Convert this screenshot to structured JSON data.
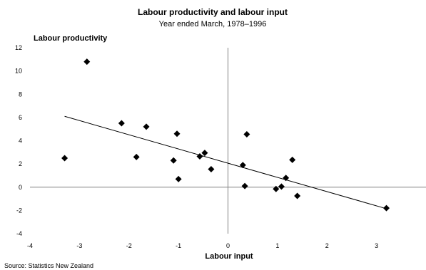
{
  "chart_data": {
    "type": "scatter",
    "title": "Labour productivity and labour input",
    "subtitle": "Year ended March, 1978–1996",
    "xlabel": "Labour input",
    "ylabel": "Labour productivity",
    "xlim": [
      -4,
      4
    ],
    "ylim": [
      -4,
      12
    ],
    "x_ticks": [
      -4,
      -3,
      -2,
      -1,
      0,
      1,
      2,
      3
    ],
    "y_ticks": [
      -4,
      -2,
      0,
      2,
      4,
      6,
      8,
      10,
      12
    ],
    "grid": false,
    "legend": "none",
    "points": [
      {
        "x": -3.3,
        "y": 2.5
      },
      {
        "x": -2.85,
        "y": 10.8
      },
      {
        "x": -2.15,
        "y": 5.5
      },
      {
        "x": -1.85,
        "y": 2.6
      },
      {
        "x": -1.65,
        "y": 5.2
      },
      {
        "x": -1.1,
        "y": 2.3
      },
      {
        "x": -1.03,
        "y": 4.6
      },
      {
        "x": -1.0,
        "y": 0.7
      },
      {
        "x": -0.57,
        "y": 2.65
      },
      {
        "x": -0.47,
        "y": 2.95
      },
      {
        "x": -0.34,
        "y": 1.55
      },
      {
        "x": 0.3,
        "y": 1.9
      },
      {
        "x": 0.34,
        "y": 0.1
      },
      {
        "x": 0.38,
        "y": 4.55
      },
      {
        "x": 0.97,
        "y": -0.15
      },
      {
        "x": 1.08,
        "y": 0.05
      },
      {
        "x": 1.17,
        "y": 0.8
      },
      {
        "x": 1.3,
        "y": 2.35
      },
      {
        "x": 1.4,
        "y": -0.75
      },
      {
        "x": 3.2,
        "y": -1.8
      }
    ],
    "trendline": {
      "x": [
        -3.3,
        3.2
      ],
      "y": [
        6.1,
        -1.85
      ]
    },
    "marker_color": "#000000",
    "line_color": "#000000",
    "axis_color": "#808080"
  },
  "source": "Source: Statistics New Zealand"
}
